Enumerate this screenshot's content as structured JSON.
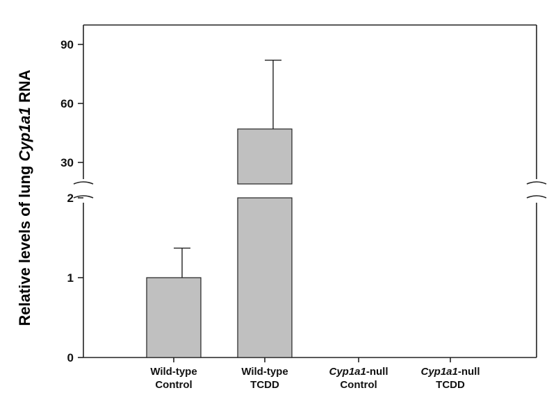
{
  "chart_data": {
    "type": "bar",
    "ylabel_parts": [
      {
        "text": "Relative levels of lung ",
        "italic": false
      },
      {
        "text": "Cyp1a1",
        "italic": true
      },
      {
        "text": " RNA",
        "italic": false
      }
    ],
    "categories": [
      {
        "line1": [
          {
            "text": "Wild-type",
            "italic": false
          }
        ],
        "line2": "Control"
      },
      {
        "line1": [
          {
            "text": "Wild-type",
            "italic": false
          }
        ],
        "line2": "TCDD"
      },
      {
        "line1": [
          {
            "text": "Cyp1a1",
            "italic": true
          },
          {
            "text": "-null",
            "italic": false
          }
        ],
        "line2": "Control"
      },
      {
        "line1": [
          {
            "text": "Cyp1a1",
            "italic": true
          },
          {
            "text": "-null",
            "italic": false
          }
        ],
        "line2": "TCDD"
      }
    ],
    "values": [
      1.0,
      47,
      0,
      0
    ],
    "error_upper": [
      1.37,
      82,
      null,
      null
    ],
    "axis_break": {
      "lower_max": 2,
      "upper_min": 22
    },
    "lower_ticks": [
      0,
      1,
      2
    ],
    "upper_ticks": [
      30,
      60,
      90
    ],
    "upper_ylim": [
      22,
      95
    ],
    "grid": false
  }
}
